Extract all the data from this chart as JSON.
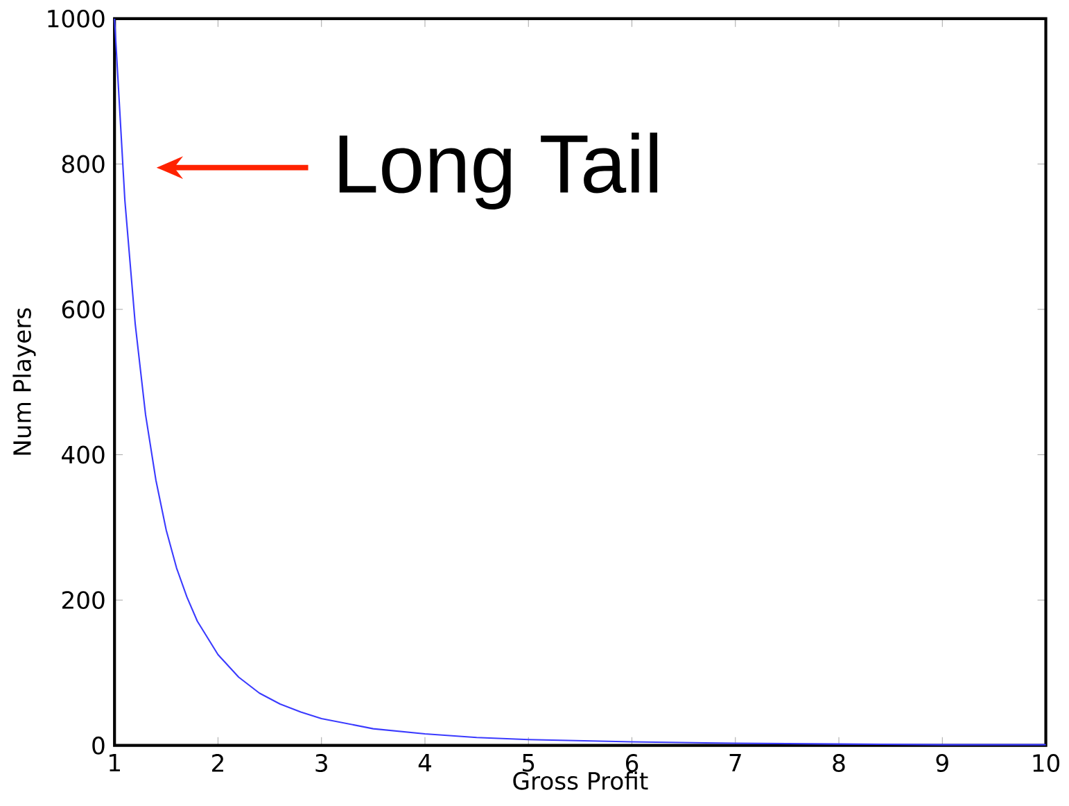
{
  "chart_data": {
    "type": "line",
    "xlabel": "Gross Profit",
    "ylabel": "Num Players",
    "x": [
      1,
      1.1,
      1.2,
      1.3,
      1.4,
      1.5,
      1.6,
      1.7,
      1.8,
      2,
      2.2,
      2.4,
      2.6,
      2.8,
      3,
      3.5,
      4,
      4.5,
      5,
      6,
      7,
      8,
      9,
      10
    ],
    "series": [
      {
        "color": "#3a3aff",
        "values": [
          1000,
          750,
          580,
          455,
          365,
          296,
          244,
          204,
          171,
          125,
          94,
          72,
          57,
          46,
          37,
          23,
          16,
          11,
          8,
          5,
          3,
          2,
          1,
          1
        ]
      }
    ],
    "xlim": [
      1,
      10
    ],
    "ylim": [
      0,
      1000
    ],
    "xticks": [
      1,
      2,
      3,
      4,
      5,
      6,
      7,
      8,
      9,
      10
    ],
    "yticks": [
      0,
      200,
      400,
      600,
      800,
      1000
    ],
    "annotations": [
      "Long Tail"
    ],
    "grid": false,
    "marker": "none",
    "line_style": "solid"
  }
}
